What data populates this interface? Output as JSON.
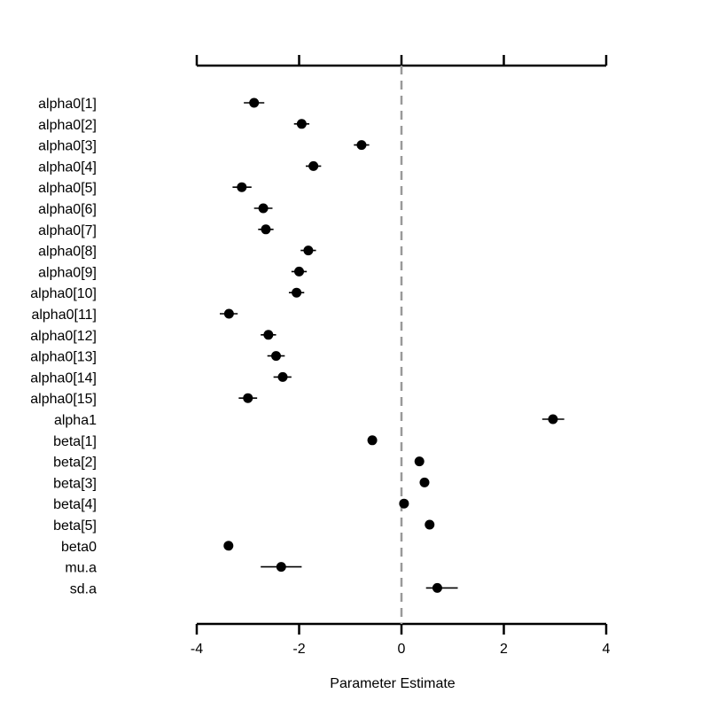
{
  "chart_data": {
    "type": "scatter",
    "xlabel": "Parameter Estimate",
    "xlim": [
      -4,
      4
    ],
    "xticks": [
      "-4",
      "-2",
      "0",
      "2",
      "4"
    ],
    "reference_line": 0,
    "grid": false,
    "points": [
      {
        "label": "alpha0[1]",
        "est": -2.88,
        "lo": -3.08,
        "hi": -2.68
      },
      {
        "label": "alpha0[2]",
        "est": -1.95,
        "lo": -2.1,
        "hi": -1.8
      },
      {
        "label": "alpha0[3]",
        "est": -0.78,
        "lo": -0.93,
        "hi": -0.63
      },
      {
        "label": "alpha0[4]",
        "est": -1.72,
        "lo": -1.87,
        "hi": -1.57
      },
      {
        "label": "alpha0[5]",
        "est": -3.12,
        "lo": -3.3,
        "hi": -2.93
      },
      {
        "label": "alpha0[6]",
        "est": -2.7,
        "lo": -2.88,
        "hi": -2.52
      },
      {
        "label": "alpha0[7]",
        "est": -2.65,
        "lo": -2.8,
        "hi": -2.5
      },
      {
        "label": "alpha0[8]",
        "est": -1.82,
        "lo": -1.97,
        "hi": -1.67
      },
      {
        "label": "alpha0[9]",
        "est": -2.0,
        "lo": -2.15,
        "hi": -1.85
      },
      {
        "label": "alpha0[10]",
        "est": -2.05,
        "lo": -2.2,
        "hi": -1.9
      },
      {
        "label": "alpha0[11]",
        "est": -3.37,
        "lo": -3.55,
        "hi": -3.2
      },
      {
        "label": "alpha0[12]",
        "est": -2.6,
        "lo": -2.75,
        "hi": -2.45
      },
      {
        "label": "alpha0[13]",
        "est": -2.45,
        "lo": -2.62,
        "hi": -2.28
      },
      {
        "label": "alpha0[14]",
        "est": -2.32,
        "lo": -2.5,
        "hi": -2.15
      },
      {
        "label": "alpha0[15]",
        "est": -3.0,
        "lo": -3.18,
        "hi": -2.82
      },
      {
        "label": "alpha1",
        "est": 2.96,
        "lo": 2.75,
        "hi": 3.18
      },
      {
        "label": "beta[1]",
        "est": -0.57,
        "lo": -0.62,
        "hi": -0.52
      },
      {
        "label": "beta[2]",
        "est": 0.35,
        "lo": 0.3,
        "hi": 0.4
      },
      {
        "label": "beta[3]",
        "est": 0.45,
        "lo": 0.4,
        "hi": 0.5
      },
      {
        "label": "beta[4]",
        "est": 0.05,
        "lo": 0.0,
        "hi": 0.1
      },
      {
        "label": "beta[5]",
        "est": 0.55,
        "lo": 0.5,
        "hi": 0.6
      },
      {
        "label": "beta0",
        "est": -3.38,
        "lo": -3.43,
        "hi": -3.33
      },
      {
        "label": "mu.a",
        "est": -2.35,
        "lo": -2.75,
        "hi": -1.95
      },
      {
        "label": "sd.a",
        "est": 0.7,
        "lo": 0.48,
        "hi": 1.1
      }
    ]
  }
}
